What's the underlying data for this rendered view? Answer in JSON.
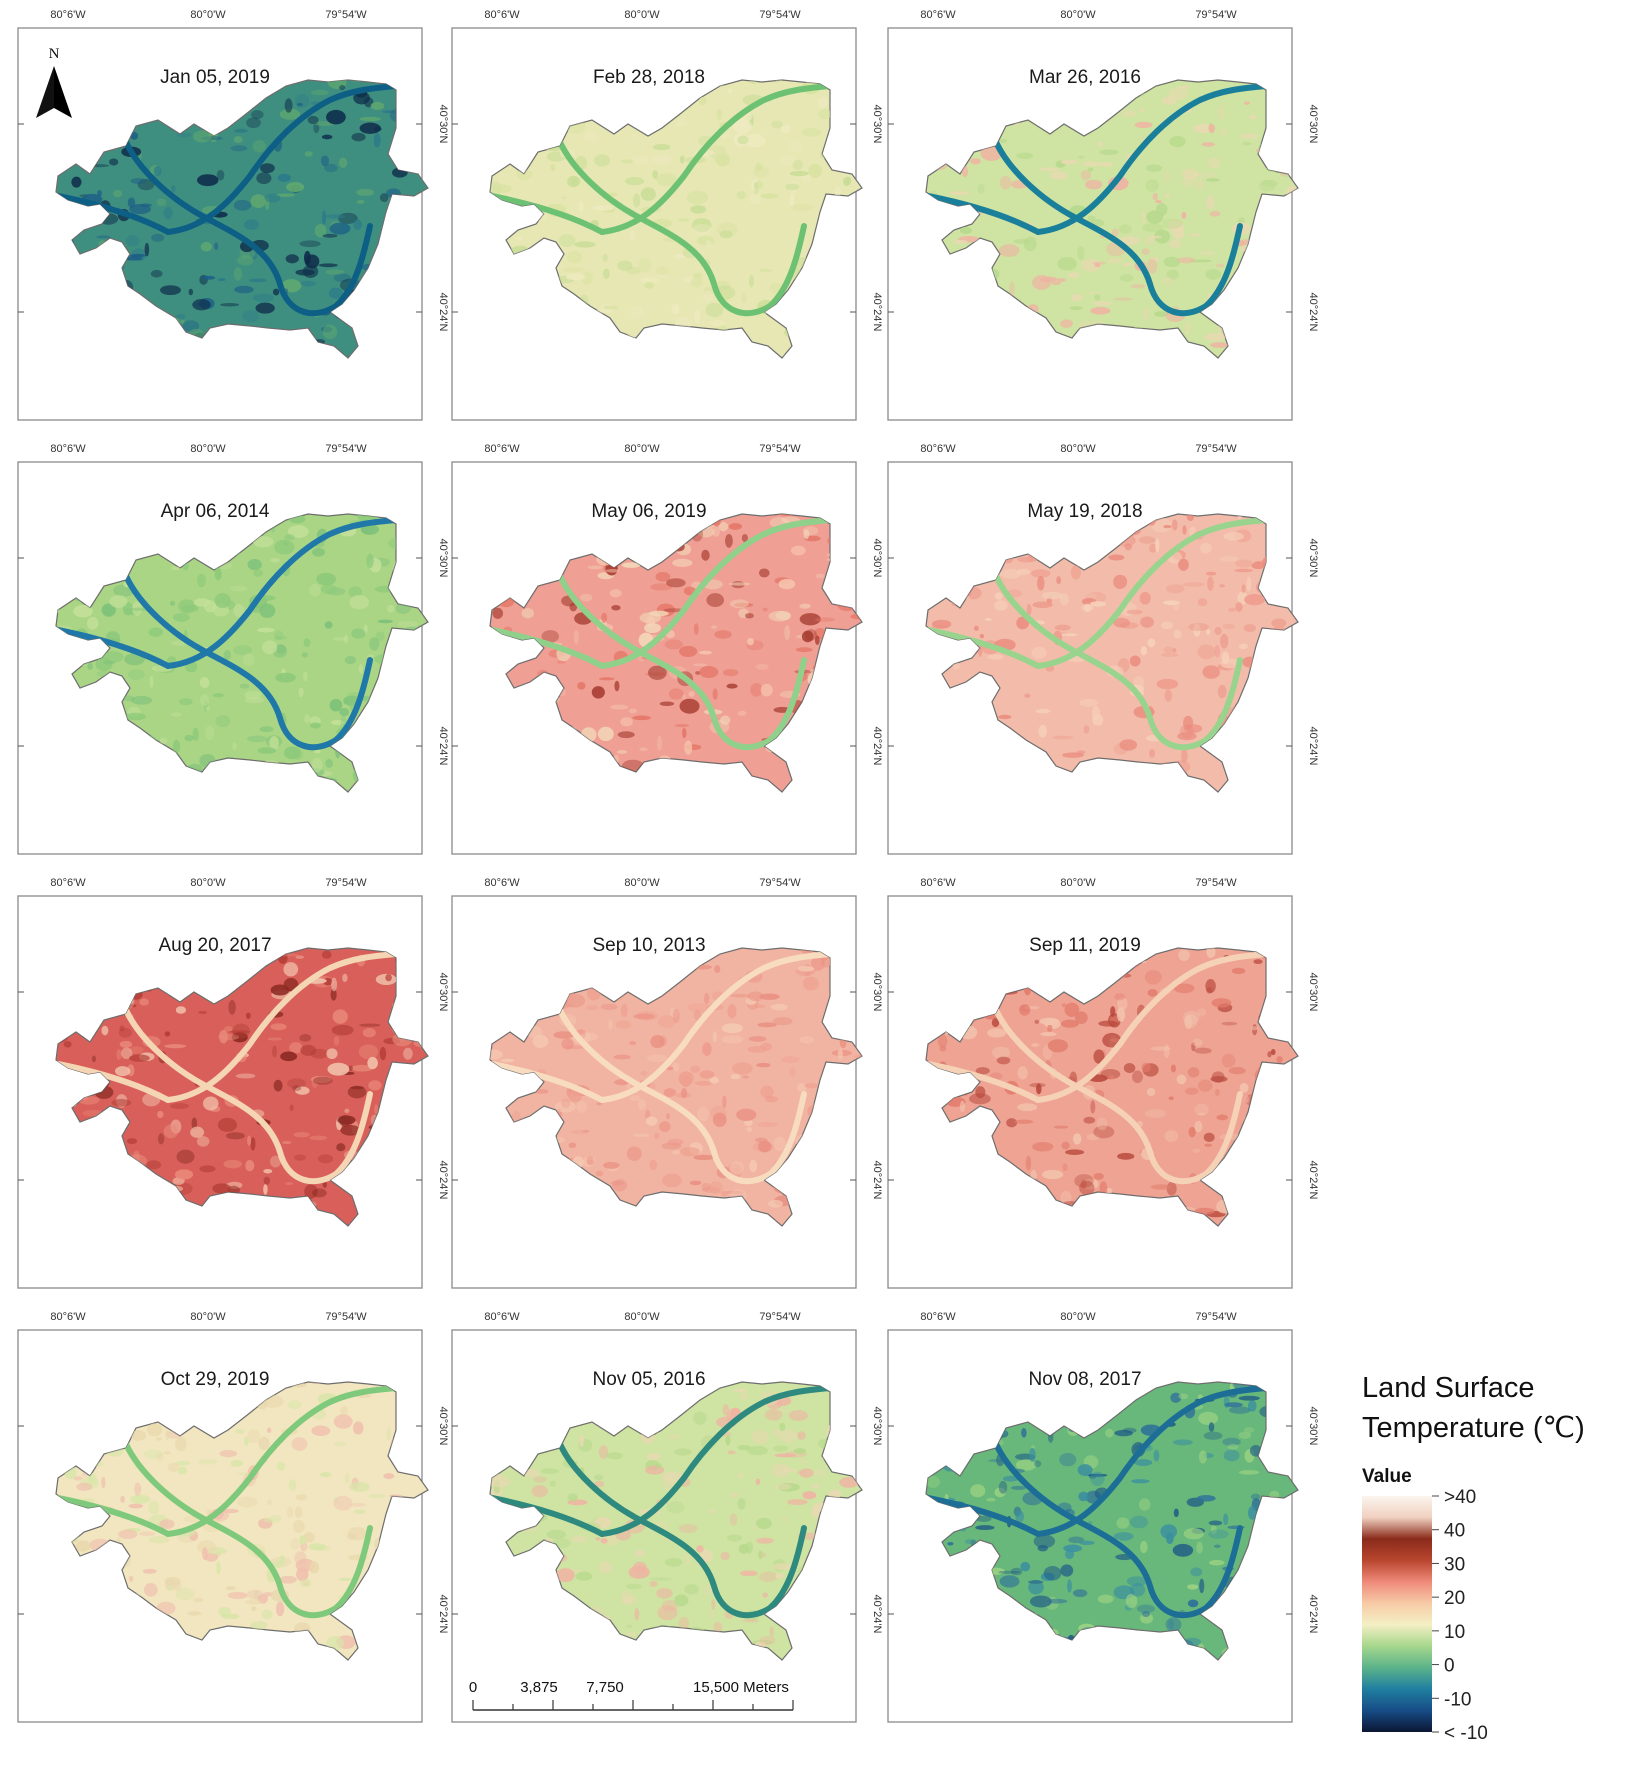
{
  "maps": [
    {
      "title": "Jan 05, 2019",
      "band": "cold-dark",
      "river": "#0d5f86",
      "north_arrow": true
    },
    {
      "title": "Feb 28, 2018",
      "band": "pale-yellow",
      "river": "#6cc272",
      "north_arrow": false
    },
    {
      "title": "Mar 26, 2016",
      "band": "pale-green",
      "river": "#1a7f9a",
      "north_arrow": false
    },
    {
      "title": "Apr 06, 2014",
      "band": "green",
      "river": "#1f78a8",
      "north_arrow": false
    },
    {
      "title": "May 06, 2019",
      "band": "warm-red",
      "river": "#8fd08b",
      "north_arrow": false
    },
    {
      "title": "May 19, 2018",
      "band": "salmon",
      "river": "#98d48d",
      "north_arrow": false
    },
    {
      "title": "Aug 20, 2017",
      "band": "hot-red",
      "river": "#f5d6b4",
      "north_arrow": false
    },
    {
      "title": "Sep 10, 2013",
      "band": "light-salmon",
      "river": "#f7dcc0",
      "north_arrow": false
    },
    {
      "title": "Sep 11, 2019",
      "band": "salmon-red",
      "river": "#f5d2b6",
      "north_arrow": false
    },
    {
      "title": "Oct 29, 2019",
      "band": "cream",
      "river": "#7ec97b",
      "north_arrow": false
    },
    {
      "title": "Nov 05, 2016",
      "band": "pale-green",
      "river": "#2e8a7e",
      "north_arrow": false
    },
    {
      "title": "Nov 08, 2017",
      "band": "cool-green-blue",
      "river": "#1d6e96",
      "north_arrow": false
    }
  ],
  "band_colors": {
    "cold-dark": {
      "fill": "#3f8f80",
      "spots": [
        "#1b5d86",
        "#2b7a8a",
        "#5fa86f",
        "#0e2c4a"
      ]
    },
    "pale-yellow": {
      "fill": "#e6e7b3",
      "spots": [
        "#d8e2a1",
        "#c8dd96",
        "#eeeac0"
      ]
    },
    "pale-green": {
      "fill": "#cfe3a2",
      "spots": [
        "#b6d98c",
        "#e9d9b2",
        "#f0b3a3"
      ]
    },
    "green": {
      "fill": "#a9d585",
      "spots": [
        "#8cc97a",
        "#c4e09a",
        "#7cc07a"
      ]
    },
    "warm-red": {
      "fill": "#ef9f94",
      "spots": [
        "#e47566",
        "#f6c4ad",
        "#a4392e",
        "#f2d6b8"
      ]
    },
    "salmon": {
      "fill": "#f3bcaa",
      "spots": [
        "#ee9c8d",
        "#f6d2bb",
        "#ea8d80"
      ]
    },
    "hot-red": {
      "fill": "#d9605a",
      "spots": [
        "#b23d36",
        "#8a2a22",
        "#e98a7a",
        "#f2c3ad"
      ]
    },
    "light-salmon": {
      "fill": "#f2b4a2",
      "spots": [
        "#ee9f8f",
        "#f5c9b2",
        "#e99082"
      ]
    },
    "salmon-red": {
      "fill": "#eea393",
      "spots": [
        "#e27b6c",
        "#f3c4ad",
        "#b8483c"
      ]
    },
    "cream": {
      "fill": "#f1e6bf",
      "spots": [
        "#e9d7ad",
        "#f0bfae",
        "#d7e5a8"
      ]
    },
    "cool-green-blue": {
      "fill": "#68b87c",
      "spots": [
        "#3a8fa0",
        "#2d6f9a",
        "#9fd482",
        "#1f5b86"
      ]
    }
  },
  "axis": {
    "top_ticks": [
      "80°6'W",
      "80°0'W",
      "79°54'W"
    ],
    "right_ticks": [
      "40°30'N",
      "40°24'N"
    ]
  },
  "north_label": "N",
  "scale_bar": {
    "labels": [
      "0",
      "3,875",
      "7,750",
      "15,500 Meters"
    ]
  },
  "legend": {
    "title_line1": "Land Surface",
    "title_line2": "Temperature (℃)",
    "subtitle": "Value",
    "labels": [
      ">40",
      "40",
      "30",
      "20",
      "10",
      "0",
      "-10",
      "< -10"
    ],
    "gradient_stops": [
      "#fbf5ee",
      "#f0d0bf",
      "#8a2a1a",
      "#b9462f",
      "#ef8a7a",
      "#f6cba6",
      "#f4efc4",
      "#a6d78c",
      "#5bb38a",
      "#1f7fa0",
      "#174c86",
      "#0b1633"
    ]
  }
}
